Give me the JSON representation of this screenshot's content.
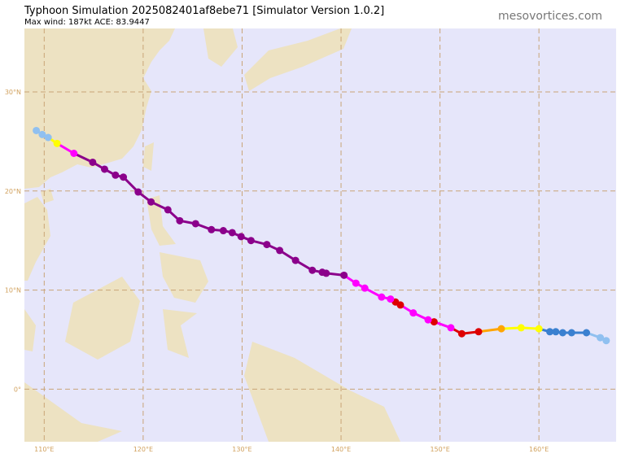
{
  "title": "Typhoon Simulation 2025082401af8ebe71   [Simulator Version 1.0.2]",
  "subtitle": "Max wind: 187kt ACE: 83.9447",
  "site": "mesovortices.com",
  "map": {
    "lonlim": [
      108.0,
      167.8
    ],
    "latlim": [
      -5.3,
      36.4
    ],
    "lonticks": [
      {
        "value": 110,
        "label": "110°E"
      },
      {
        "value": 120,
        "label": "120°E"
      },
      {
        "value": 130,
        "label": "130°E"
      },
      {
        "value": 140,
        "label": "140°E"
      },
      {
        "value": 150,
        "label": "150°E"
      },
      {
        "value": 160,
        "label": "160°E"
      }
    ],
    "latticks": [
      {
        "value": 0,
        "label": "0°"
      },
      {
        "value": 10,
        "label": "10°N"
      },
      {
        "value": 20,
        "label": "20°N"
      },
      {
        "value": 30,
        "label": "30°N"
      }
    ],
    "grid": true
  },
  "track": [
    {
      "lon": 166.8,
      "lat": 4.9,
      "color": "#90c0f0"
    },
    {
      "lon": 166.2,
      "lat": 5.2,
      "color": "#90c0f0"
    },
    {
      "lon": 164.8,
      "lat": 5.7,
      "color": "#3a80d0"
    },
    {
      "lon": 163.3,
      "lat": 5.7,
      "color": "#3a80d0"
    },
    {
      "lon": 162.4,
      "lat": 5.7,
      "color": "#3a80d0"
    },
    {
      "lon": 161.7,
      "lat": 5.8,
      "color": "#3a80d0"
    },
    {
      "lon": 161.1,
      "lat": 5.8,
      "color": "#3a80d0"
    },
    {
      "lon": 160.0,
      "lat": 6.1,
      "color": "#ffff00"
    },
    {
      "lon": 158.2,
      "lat": 6.2,
      "color": "#ffff00"
    },
    {
      "lon": 156.2,
      "lat": 6.1,
      "color": "#ffa500"
    },
    {
      "lon": 153.9,
      "lat": 5.8,
      "color": "#dd0000"
    },
    {
      "lon": 152.2,
      "lat": 5.6,
      "color": "#dd0000"
    },
    {
      "lon": 151.1,
      "lat": 6.2,
      "color": "#ff00ff"
    },
    {
      "lon": 149.4,
      "lat": 6.8,
      "color": "#dd0000"
    },
    {
      "lon": 148.8,
      "lat": 7.0,
      "color": "#ff00ff"
    },
    {
      "lon": 147.3,
      "lat": 7.7,
      "color": "#ff00ff"
    },
    {
      "lon": 146.0,
      "lat": 8.5,
      "color": "#dd0000"
    },
    {
      "lon": 145.5,
      "lat": 8.8,
      "color": "#dd0000"
    },
    {
      "lon": 145.0,
      "lat": 9.1,
      "color": "#ff00ff"
    },
    {
      "lon": 144.1,
      "lat": 9.3,
      "color": "#ff00ff"
    },
    {
      "lon": 142.4,
      "lat": 10.2,
      "color": "#ff00ff"
    },
    {
      "lon": 141.5,
      "lat": 10.7,
      "color": "#ff00ff"
    },
    {
      "lon": 140.3,
      "lat": 11.5,
      "color": "#8b008b"
    },
    {
      "lon": 138.5,
      "lat": 11.7,
      "color": "#8b008b"
    },
    {
      "lon": 138.1,
      "lat": 11.8,
      "color": "#8b008b"
    },
    {
      "lon": 137.1,
      "lat": 12.0,
      "color": "#8b008b"
    },
    {
      "lon": 135.4,
      "lat": 13.0,
      "color": "#8b008b"
    },
    {
      "lon": 133.8,
      "lat": 14.0,
      "color": "#8b008b"
    },
    {
      "lon": 132.5,
      "lat": 14.6,
      "color": "#8b008b"
    },
    {
      "lon": 130.9,
      "lat": 15.0,
      "color": "#8b008b"
    },
    {
      "lon": 129.9,
      "lat": 15.4,
      "color": "#8b008b"
    },
    {
      "lon": 129.0,
      "lat": 15.8,
      "color": "#8b008b"
    },
    {
      "lon": 128.1,
      "lat": 16.0,
      "color": "#8b008b"
    },
    {
      "lon": 126.9,
      "lat": 16.1,
      "color": "#8b008b"
    },
    {
      "lon": 125.3,
      "lat": 16.7,
      "color": "#8b008b"
    },
    {
      "lon": 123.7,
      "lat": 17.0,
      "color": "#8b008b"
    },
    {
      "lon": 122.5,
      "lat": 18.1,
      "color": "#8b008b"
    },
    {
      "lon": 120.8,
      "lat": 18.9,
      "color": "#8b008b"
    },
    {
      "lon": 119.5,
      "lat": 19.9,
      "color": "#8b008b"
    },
    {
      "lon": 118.0,
      "lat": 21.4,
      "color": "#8b008b"
    },
    {
      "lon": 117.2,
      "lat": 21.6,
      "color": "#8b008b"
    },
    {
      "lon": 116.1,
      "lat": 22.2,
      "color": "#8b008b"
    },
    {
      "lon": 114.9,
      "lat": 22.9,
      "color": "#8b008b"
    },
    {
      "lon": 113.0,
      "lat": 23.8,
      "color": "#ff00ff"
    },
    {
      "lon": 111.3,
      "lat": 24.8,
      "color": "#ffff00"
    },
    {
      "lon": 110.4,
      "lat": 25.4,
      "color": "#90c0f0"
    },
    {
      "lon": 109.8,
      "lat": 25.7,
      "color": "#90c0f0"
    },
    {
      "lon": 109.2,
      "lat": 26.1,
      "color": "#90c0f0"
    }
  ]
}
